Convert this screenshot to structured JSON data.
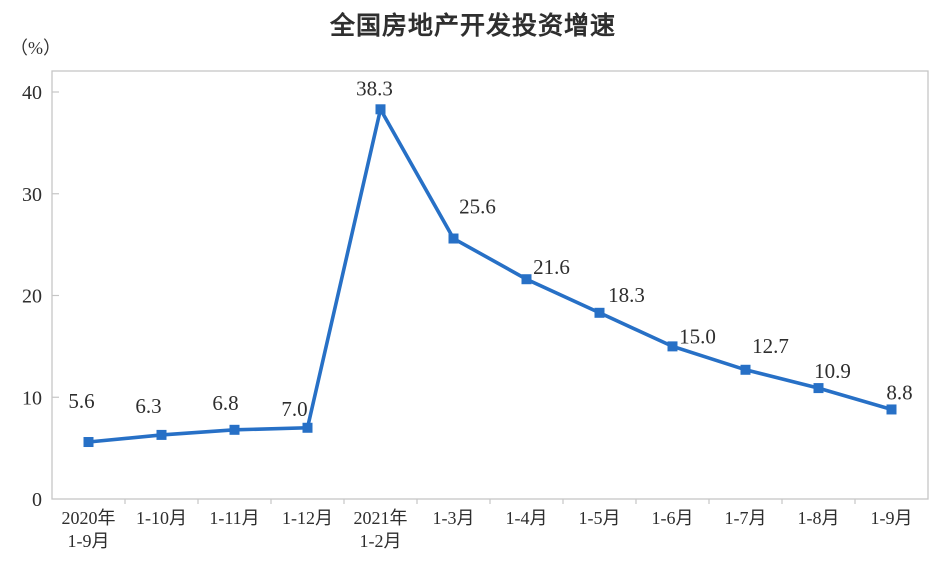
{
  "chart_data": {
    "type": "line",
    "title": "全国房地产开发投资增速",
    "unit_label": "（%）",
    "categories": [
      [
        "2020年",
        "1-9月"
      ],
      "1-10月",
      "1-11月",
      "1-12月",
      [
        "2021年",
        "1-2月"
      ],
      "1-3月",
      "1-4月",
      "1-5月",
      "1-6月",
      "1-7月",
      "1-8月",
      "1-9月"
    ],
    "values": [
      5.6,
      6.3,
      6.8,
      7.0,
      38.3,
      25.6,
      21.6,
      18.3,
      15.0,
      12.7,
      10.9,
      8.8
    ],
    "point_labels": [
      "5.6",
      "6.3",
      "6.8",
      "7.0",
      "38.3",
      "25.6",
      "21.6",
      "18.3",
      "15.0",
      "12.7",
      "10.9",
      "8.8"
    ],
    "yticks": [
      0,
      10,
      20,
      30,
      40
    ],
    "ylim": [
      0,
      42
    ],
    "xlabel": "",
    "ylabel": "（%）",
    "grid": false,
    "legend_position": "none",
    "line_color": "#2770C6",
    "marker_shape": "square",
    "text_color": "#2e2e2e",
    "axis_frame_color": "#c6c6c6"
  }
}
